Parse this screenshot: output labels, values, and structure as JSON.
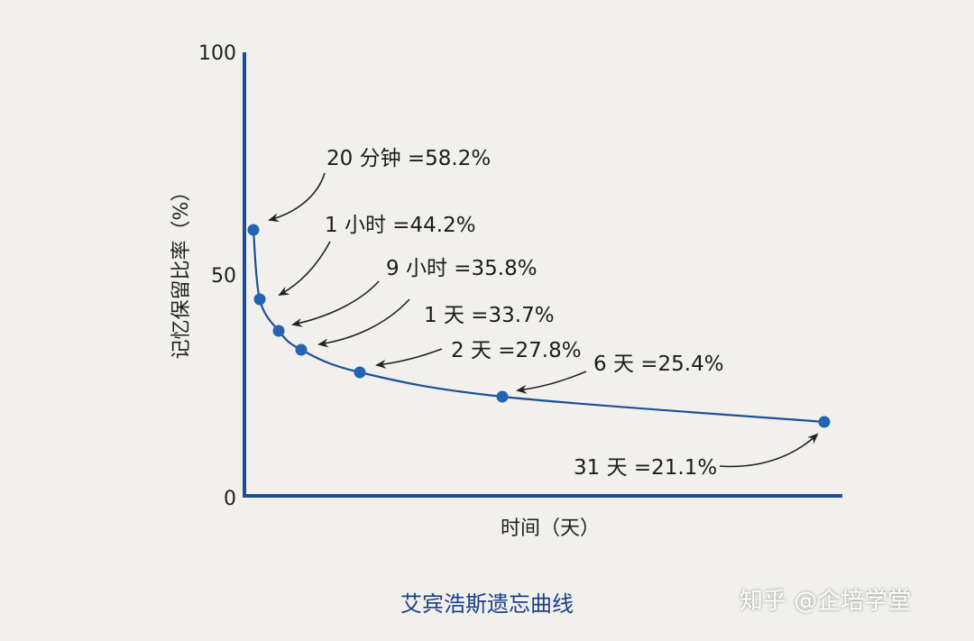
{
  "chart_data": {
    "type": "line",
    "title": "",
    "ylabel": "记忆保留比率（%）",
    "xlabel": "时间（天）",
    "y_ticks": [
      "100",
      "50",
      "0"
    ],
    "ylim": [
      0,
      100
    ],
    "grid": false,
    "line_color": "#1e4f96",
    "point_color": "#2463b0",
    "series": [
      {
        "points": [
          {
            "label": "20 分钟 =58.2%",
            "value": 58.2
          },
          {
            "label": "1 小时 =44.2%",
            "value": 44.2
          },
          {
            "label": "9 小时 =35.8%",
            "value": 35.8
          },
          {
            "label": "1 天 =33.7%",
            "value": 33.7
          },
          {
            "label": "2 天 =27.8%",
            "value": 27.8
          },
          {
            "label": "6 天 =25.4%",
            "value": 25.4
          },
          {
            "label": "31 天 =21.1%",
            "value": 21.1
          }
        ]
      }
    ]
  },
  "caption": "艾宾浩斯遗忘曲线",
  "watermark": "知乎 @企培学堂"
}
